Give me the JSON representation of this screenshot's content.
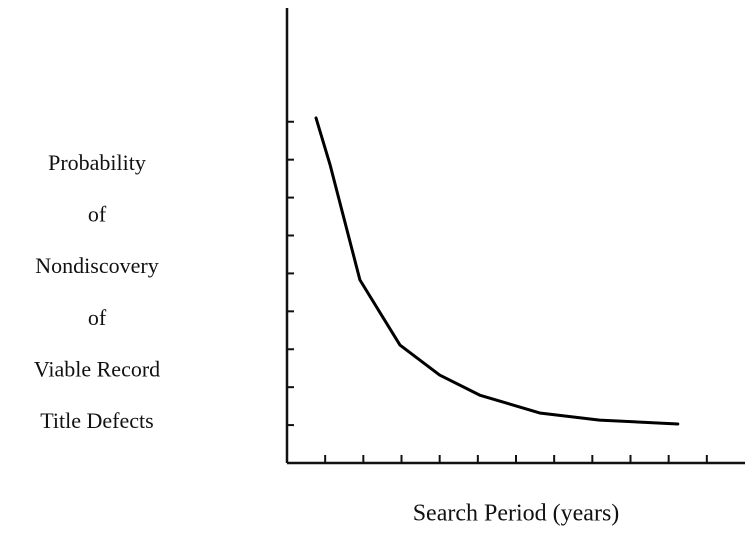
{
  "chart_data": {
    "type": "line",
    "ylabel": [
      "Probability",
      "of",
      "Nondiscovery",
      "of",
      "Viable Record",
      "Title Defects"
    ],
    "xlabel": "Search Period (years)",
    "x": [
      0.76,
      1.13,
      1.91,
      2.96,
      4.0,
      5.05,
      6.62,
      8.19,
      10.24
    ],
    "series": [
      {
        "color": "#000000",
        "values": [
          9.1,
          7.86,
          4.83,
          3.11,
          2.32,
          1.79,
          1.32,
          1.13,
          1.03
        ]
      }
    ],
    "xlim": [
      0,
      12
    ],
    "ylim": [
      0,
      12
    ],
    "xticks": [
      1,
      2,
      3,
      4,
      5,
      6,
      7,
      8,
      9,
      10,
      11
    ],
    "yticks": [
      1,
      2,
      3,
      4,
      5,
      6,
      7,
      8,
      9
    ]
  }
}
